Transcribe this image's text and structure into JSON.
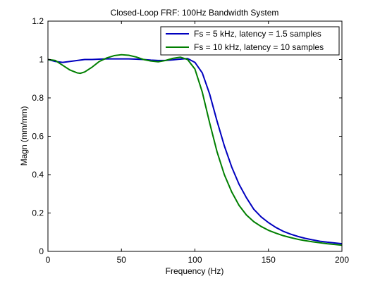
{
  "chart_data": {
    "type": "line",
    "title": "Closed-Loop FRF: 100Hz Bandwidth System",
    "xlabel": "Frequency (Hz)",
    "ylabel": "Magn (mm/mm)",
    "xlim": [
      0,
      200
    ],
    "ylim": [
      0,
      1.2
    ],
    "xticks": [
      0,
      50,
      100,
      150,
      200
    ],
    "xtick_labels": [
      "0",
      "50",
      "100",
      "150",
      "200"
    ],
    "yticks": [
      0,
      0.2,
      0.4,
      0.6,
      0.8,
      1,
      1.2
    ],
    "ytick_labels": [
      "0",
      "0.2",
      "0.4",
      "0.6",
      "0.8",
      "1",
      "1.2"
    ],
    "grid": false,
    "legend_position": "top-right",
    "series": [
      {
        "name": "Fs = 5 kHz, latency = 1.5 samples",
        "color": "#0000bf",
        "x": [
          0,
          5,
          10,
          15,
          20,
          25,
          30,
          35,
          40,
          45,
          50,
          55,
          60,
          65,
          70,
          75,
          80,
          85,
          90,
          95,
          100,
          105,
          110,
          115,
          120,
          125,
          130,
          135,
          140,
          145,
          150,
          155,
          160,
          165,
          170,
          175,
          180,
          185,
          190,
          195,
          200
        ],
        "y": [
          1.0,
          0.99,
          0.985,
          0.99,
          0.995,
          1.0,
          1.0,
          1.002,
          1.003,
          1.003,
          1.003,
          1.003,
          1.002,
          1.0,
          0.997,
          0.995,
          0.995,
          0.998,
          1.002,
          1.005,
          0.985,
          0.93,
          0.82,
          0.68,
          0.55,
          0.44,
          0.35,
          0.28,
          0.22,
          0.18,
          0.15,
          0.125,
          0.105,
          0.09,
          0.078,
          0.068,
          0.06,
          0.053,
          0.048,
          0.044,
          0.04
        ]
      },
      {
        "name": "Fs = 10 kHz, latency = 10 samples",
        "color": "#007f00",
        "x": [
          0,
          5,
          10,
          15,
          20,
          22,
          25,
          30,
          35,
          40,
          45,
          50,
          55,
          60,
          65,
          70,
          75,
          80,
          85,
          90,
          95,
          100,
          105,
          110,
          115,
          120,
          125,
          130,
          135,
          140,
          145,
          150,
          155,
          160,
          165,
          170,
          175,
          180,
          185,
          190,
          195,
          200
        ],
        "y": [
          1.0,
          0.995,
          0.97,
          0.945,
          0.93,
          0.928,
          0.935,
          0.96,
          0.99,
          1.008,
          1.02,
          1.025,
          1.022,
          1.013,
          1.0,
          0.992,
          0.988,
          0.995,
          1.006,
          1.012,
          1.0,
          0.95,
          0.83,
          0.67,
          0.52,
          0.4,
          0.31,
          0.24,
          0.19,
          0.155,
          0.13,
          0.11,
          0.095,
          0.082,
          0.072,
          0.063,
          0.056,
          0.05,
          0.045,
          0.04,
          0.036,
          0.032
        ]
      }
    ]
  }
}
